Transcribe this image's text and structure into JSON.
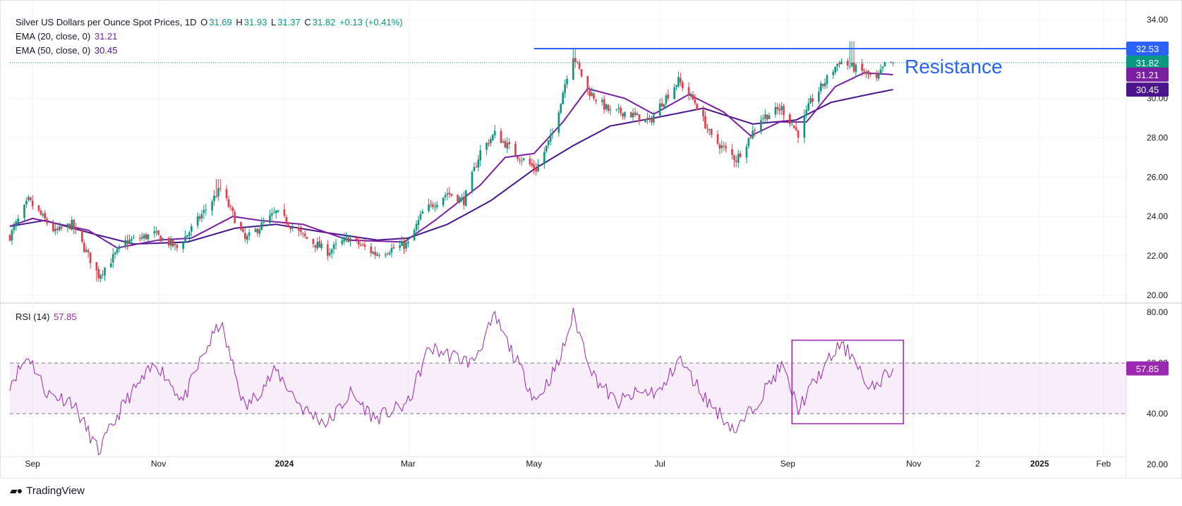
{
  "header": {
    "title": "Silver US Dollars per Ounce Spot Prices, 1D",
    "ohlc": {
      "o_label": "O",
      "o": "31.69",
      "h_label": "H",
      "h": "31.93",
      "l_label": "L",
      "l": "31.37",
      "c_label": "C",
      "c": "31.82",
      "change": "+0.13 (+0.41%)"
    },
    "ema20_label": "EMA (20, close, 0)",
    "ema20_value": "31.21",
    "ema50_label": "EMA (50, close, 0)",
    "ema50_value": "30.45",
    "rsi_label": "RSI (14)",
    "rsi_value": "57.85"
  },
  "brand": {
    "name": "TradingView"
  },
  "colors": {
    "up": "#089981",
    "down": "#f23645",
    "ema20": "#7b1fa2",
    "ema50": "#4a148c",
    "rsi": "#9c27b0",
    "resistance": "#2962ff",
    "rsi_box": "#9c27b0"
  },
  "chart_data": {
    "type": "candlestick",
    "title": "Silver US Dollars per Ounce Spot Prices, 1D",
    "price_axis": {
      "ticks": [
        "34.00",
        "32.00",
        "30.00",
        "28.00",
        "26.00",
        "24.00",
        "22.00",
        "20.00"
      ],
      "range": [
        19.6,
        34.5
      ]
    },
    "time_axis": {
      "ticks": [
        {
          "label": "Sep",
          "date": "2023-09-01"
        },
        {
          "label": "Nov",
          "date": "2023-11-01"
        },
        {
          "label": "2024",
          "date": "2024-01-01",
          "bold": true
        },
        {
          "label": "Mar",
          "date": "2024-03-01"
        },
        {
          "label": "May",
          "date": "2024-05-01"
        },
        {
          "label": "Jul",
          "date": "2024-07-01"
        },
        {
          "label": "Sep",
          "date": "2024-09-01"
        },
        {
          "label": "Nov",
          "date": "2024-11-01"
        },
        {
          "label": "2",
          "date": "2024-12-02"
        },
        {
          "label": "2025",
          "date": "2025-01-01",
          "bold": true
        },
        {
          "label": "Feb",
          "date": "2025-02-01"
        }
      ],
      "range": [
        "2023-08-21",
        "2025-02-12"
      ]
    },
    "price_keypoints": [
      [
        "2023-08-21",
        23.0
      ],
      [
        "2023-08-30",
        24.8
      ],
      [
        "2023-09-12",
        23.2
      ],
      [
        "2023-09-20",
        23.6
      ],
      [
        "2023-10-03",
        21.0
      ],
      [
        "2023-10-16",
        22.7
      ],
      [
        "2023-10-30",
        23.1
      ],
      [
        "2023-11-10",
        22.4
      ],
      [
        "2023-11-20",
        23.8
      ],
      [
        "2023-12-01",
        25.4
      ],
      [
        "2023-12-13",
        22.8
      ],
      [
        "2023-12-28",
        24.2
      ],
      [
        "2024-01-10",
        23.0
      ],
      [
        "2024-01-22",
        22.2
      ],
      [
        "2024-02-01",
        22.9
      ],
      [
        "2024-02-14",
        22.1
      ],
      [
        "2024-03-01",
        22.6
      ],
      [
        "2024-03-08",
        24.2
      ],
      [
        "2024-03-20",
        25.2
      ],
      [
        "2024-03-28",
        24.8
      ],
      [
        "2024-04-05",
        27.3
      ],
      [
        "2024-04-12",
        28.2
      ],
      [
        "2024-04-23",
        27.1
      ],
      [
        "2024-05-02",
        26.4
      ],
      [
        "2024-05-10",
        28.2
      ],
      [
        "2024-05-17",
        31.2
      ],
      [
        "2024-05-20",
        32.2
      ],
      [
        "2024-05-27",
        30.4
      ],
      [
        "2024-06-07",
        29.3
      ],
      [
        "2024-06-14",
        29.3
      ],
      [
        "2024-06-26",
        28.8
      ],
      [
        "2024-07-02",
        29.8
      ],
      [
        "2024-07-10",
        30.9
      ],
      [
        "2024-07-18",
        29.8
      ],
      [
        "2024-07-26",
        28.0
      ],
      [
        "2024-08-07",
        26.9
      ],
      [
        "2024-08-19",
        29.0
      ],
      [
        "2024-08-29",
        29.5
      ],
      [
        "2024-09-06",
        28.2
      ],
      [
        "2024-09-12",
        29.8
      ],
      [
        "2024-09-20",
        31.0
      ],
      [
        "2024-09-26",
        31.9
      ],
      [
        "2024-10-04",
        31.5
      ],
      [
        "2024-10-10",
        31.2
      ],
      [
        "2024-10-14",
        30.9
      ],
      [
        "2024-10-18",
        31.7
      ],
      [
        "2024-10-22",
        31.82
      ]
    ],
    "price_extremes": [
      {
        "date": "2023-10-03",
        "low": 20.7
      },
      {
        "date": "2023-11-30",
        "high": 25.9
      },
      {
        "date": "2024-05-20",
        "high": 32.5
      },
      {
        "date": "2024-08-07",
        "low": 26.5
      },
      {
        "date": "2024-10-02",
        "high": 32.9
      }
    ],
    "rsi_keypoints": [
      [
        "2023-08-21",
        52
      ],
      [
        "2023-08-30",
        63
      ],
      [
        "2023-09-08",
        48
      ],
      [
        "2023-09-20",
        45
      ],
      [
        "2023-10-03",
        25
      ],
      [
        "2023-10-16",
        45
      ],
      [
        "2023-10-31",
        60
      ],
      [
        "2023-11-13",
        45
      ],
      [
        "2023-11-22",
        62
      ],
      [
        "2023-12-01",
        76
      ],
      [
        "2023-12-13",
        42
      ],
      [
        "2023-12-28",
        57
      ],
      [
        "2024-01-10",
        42
      ],
      [
        "2024-01-22",
        36
      ],
      [
        "2024-02-02",
        48
      ],
      [
        "2024-02-14",
        38
      ],
      [
        "2024-03-01",
        44
      ],
      [
        "2024-03-11",
        66
      ],
      [
        "2024-03-22",
        63
      ],
      [
        "2024-04-01",
        60
      ],
      [
        "2024-04-12",
        78
      ],
      [
        "2024-04-23",
        60
      ],
      [
        "2024-05-02",
        45
      ],
      [
        "2024-05-13",
        60
      ],
      [
        "2024-05-20",
        79
      ],
      [
        "2024-05-30",
        55
      ],
      [
        "2024-06-10",
        44
      ],
      [
        "2024-06-20",
        48
      ],
      [
        "2024-07-02",
        49
      ],
      [
        "2024-07-10",
        62
      ],
      [
        "2024-07-24",
        45
      ],
      [
        "2024-08-07",
        33
      ],
      [
        "2024-08-19",
        47
      ],
      [
        "2024-08-29",
        59
      ],
      [
        "2024-09-06",
        42
      ],
      [
        "2024-09-16",
        55
      ],
      [
        "2024-09-26",
        67
      ],
      [
        "2024-10-04",
        62
      ],
      [
        "2024-10-10",
        48
      ],
      [
        "2024-10-14",
        52
      ],
      [
        "2024-10-22",
        57.85
      ]
    ],
    "ema20_keypoints": [
      [
        "2023-08-21",
        23.5
      ],
      [
        "2023-09-01",
        23.9
      ],
      [
        "2023-09-28",
        23.3
      ],
      [
        "2023-10-12",
        22.4
      ],
      [
        "2023-11-01",
        22.8
      ],
      [
        "2023-11-17",
        22.9
      ],
      [
        "2023-12-07",
        24.0
      ],
      [
        "2023-12-20",
        23.8
      ],
      [
        "2024-01-10",
        23.6
      ],
      [
        "2024-02-01",
        22.8
      ],
      [
        "2024-02-28",
        22.7
      ],
      [
        "2024-03-14",
        23.8
      ],
      [
        "2024-04-05",
        25.6
      ],
      [
        "2024-04-17",
        27.0
      ],
      [
        "2024-05-01",
        27.2
      ],
      [
        "2024-05-15",
        28.8
      ],
      [
        "2024-05-27",
        30.5
      ],
      [
        "2024-06-14",
        30.0
      ],
      [
        "2024-06-28",
        29.2
      ],
      [
        "2024-07-15",
        30.2
      ],
      [
        "2024-08-01",
        29.3
      ],
      [
        "2024-08-14",
        28.1
      ],
      [
        "2024-08-28",
        28.8
      ],
      [
        "2024-09-10",
        28.8
      ],
      [
        "2024-09-24",
        30.6
      ],
      [
        "2024-10-08",
        31.3
      ],
      [
        "2024-10-22",
        31.21
      ]
    ],
    "ema50_keypoints": [
      [
        "2023-08-21",
        23.5
      ],
      [
        "2023-09-07",
        23.8
      ],
      [
        "2023-10-01",
        23.1
      ],
      [
        "2023-10-20",
        22.6
      ],
      [
        "2023-11-15",
        22.7
      ],
      [
        "2023-12-08",
        23.4
      ],
      [
        "2023-12-28",
        23.6
      ],
      [
        "2024-01-20",
        23.2
      ],
      [
        "2024-02-15",
        22.8
      ],
      [
        "2024-03-01",
        22.9
      ],
      [
        "2024-03-20",
        23.6
      ],
      [
        "2024-04-10",
        24.8
      ],
      [
        "2024-05-01",
        26.4
      ],
      [
        "2024-05-20",
        27.6
      ],
      [
        "2024-06-07",
        28.6
      ],
      [
        "2024-06-28",
        29.0
      ],
      [
        "2024-07-22",
        29.5
      ],
      [
        "2024-08-15",
        28.7
      ],
      [
        "2024-09-05",
        28.9
      ],
      [
        "2024-09-22",
        29.8
      ],
      [
        "2024-10-10",
        30.2
      ],
      [
        "2024-10-22",
        30.45
      ]
    ],
    "resistance": {
      "label": "Resistance",
      "value": 32.53,
      "start": "2024-05-01",
      "end": "2025-02-12"
    },
    "price_labels": [
      {
        "value": 32.53,
        "text": "32.53",
        "color": "#2962ff"
      },
      {
        "value": 31.82,
        "text": "31.82",
        "color": "#089981"
      },
      {
        "value": 31.21,
        "text": "31.21",
        "color": "#7b1fa2"
      },
      {
        "value": 30.45,
        "text": "30.45",
        "color": "#4a148c"
      }
    ],
    "rsi_axis": {
      "ticks": [
        "80.00",
        "60.00",
        "40.00",
        "20.00"
      ],
      "range": [
        18,
        82
      ],
      "band": [
        40,
        60
      ]
    },
    "rsi_label": {
      "value": 57.85,
      "text": "57.85"
    },
    "rsi_box": {
      "start": "2024-09-03",
      "end": "2024-10-27",
      "low": 36,
      "high": 69
    },
    "last_close": 31.82
  }
}
